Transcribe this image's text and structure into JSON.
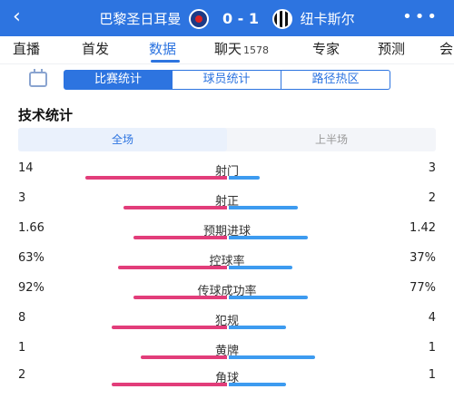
{
  "header": {
    "back_icon": "back-arrow-icon",
    "home_team": "巴黎圣日耳曼",
    "score": "0 - 1",
    "away_team": "纽卡斯尔",
    "more_icon": "more-icon"
  },
  "tabs": [
    {
      "label": "直播"
    },
    {
      "label": "首发"
    },
    {
      "label": "数据",
      "active": true
    },
    {
      "label": "聊天",
      "count": "1578"
    },
    {
      "label": "专家"
    },
    {
      "label": "预测"
    },
    {
      "label": "会"
    }
  ],
  "subtabs": [
    "比赛统计",
    "球员统计",
    "路径热区"
  ],
  "section_title": "技术统计",
  "period": [
    "全场",
    "上半场"
  ],
  "colors": {
    "accent": "#2d74e0",
    "home_bar": "#e23d7a",
    "away_bar": "#3d9bf0"
  },
  "stats": [
    {
      "label": "射门",
      "home": "14",
      "away": "3",
      "home_share": 0.82,
      "away_share": 0.18
    },
    {
      "label": "射正",
      "home": "3",
      "away": "2",
      "home_share": 0.6,
      "away_share": 0.4
    },
    {
      "label": "预期进球",
      "home": "1.66",
      "away": "1.42",
      "home_share": 0.54,
      "away_share": 0.46
    },
    {
      "label": "控球率",
      "home": "63%",
      "away": "37%",
      "home_share": 0.63,
      "away_share": 0.37
    },
    {
      "label": "传球成功率",
      "home": "92%",
      "away": "77%",
      "home_share": 0.54,
      "away_share": 0.46
    },
    {
      "label": "犯规",
      "home": "8",
      "away": "4",
      "home_share": 0.67,
      "away_share": 0.33
    },
    {
      "label": "黄牌",
      "home": "1",
      "away": "1",
      "home_share": 0.5,
      "away_share": 0.5
    },
    {
      "label": "角球",
      "home": "2",
      "away": "1",
      "home_share": 0.67,
      "away_share": 0.33
    }
  ]
}
